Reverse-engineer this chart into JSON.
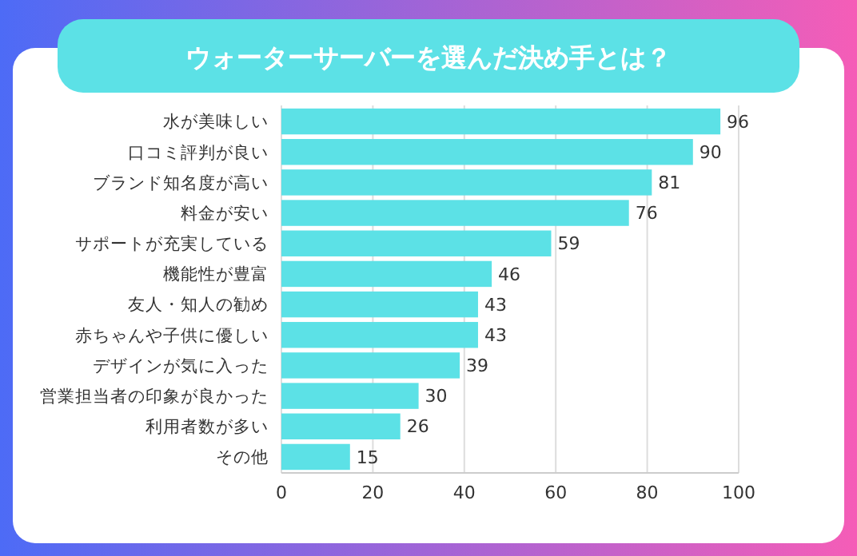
{
  "chart_data": {
    "type": "bar",
    "orientation": "horizontal",
    "title": "ウォーターサーバーを選んだ決め手とは？",
    "categories": [
      "水が美味しい",
      "口コミ評判が良い",
      "ブランド知名度が高い",
      "料金が安い",
      "サポートが充実している",
      "機能性が豊富",
      "友人・知人の勧め",
      "赤ちゃんや子供に優しい",
      "デザインが気に入った",
      "営業担当者の印象が良かった",
      "利用者数が多い",
      "その他"
    ],
    "values": [
      96,
      90,
      81,
      76,
      59,
      46,
      43,
      43,
      39,
      30,
      26,
      15
    ],
    "color": "#5ce1e6",
    "xlim": [
      0,
      100
    ],
    "xticks": [
      0,
      20,
      40,
      60,
      80,
      100
    ],
    "grid": "x",
    "data_labels": true
  }
}
